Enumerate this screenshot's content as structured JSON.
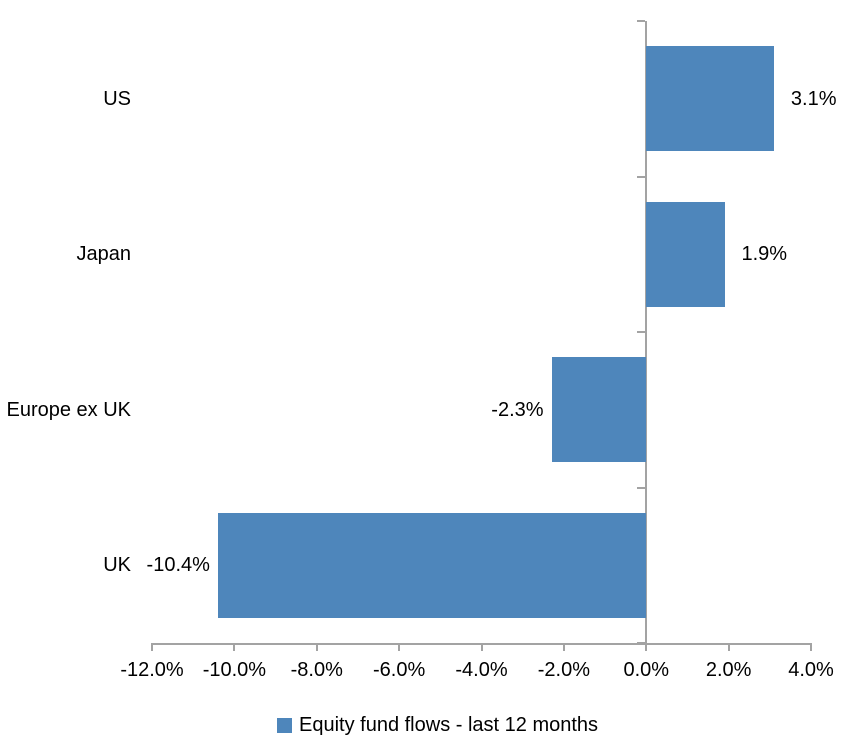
{
  "chart_data": {
    "type": "bar",
    "orientation": "horizontal",
    "title": "",
    "categories": [
      "US",
      "Japan",
      "Europe ex UK",
      "UK"
    ],
    "values": [
      3.1,
      1.9,
      -2.3,
      -10.4
    ],
    "value_labels": [
      "3.1%",
      "1.9%",
      "-2.3%",
      "-10.4%"
    ],
    "series_name": "Equity fund flows - last 12 months",
    "xlim": [
      -12,
      4
    ],
    "x_tick_step": 2,
    "x_tick_labels": [
      "-12.0%",
      "-10.0%",
      "-8.0%",
      "-6.0%",
      "-4.0%",
      "-2.0%",
      "0.0%",
      "2.0%",
      "4.0%"
    ],
    "bar_color": "#4e86bb",
    "axis_color": "#a3a3a3",
    "text_color": "#000000",
    "grid": "off",
    "legend_position": "bottom-center"
  }
}
